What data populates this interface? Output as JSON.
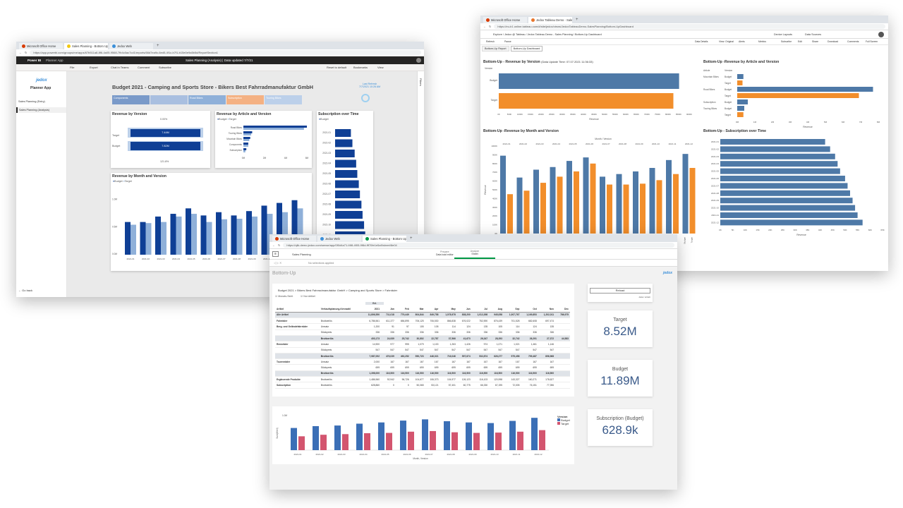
{
  "pbi": {
    "tabs": [
      "Microsoft Office Home",
      "Sales Planning - Bottom Up",
      "Jedox Web"
    ],
    "url": "https://app.powerbi.com/groups/me/apps/67b511a8-8f6-4a05-9568-7fb4c0ac7cd1/reports/66d7ea9c-6ed5-4f1c-b7f1-b15e0e9a5b5d/ReportSection1",
    "brand": "Power BI",
    "app": "Planner App",
    "center": "Sales Planning (Analysis)  |  Data updated 7/7/21",
    "toolbar": [
      "File",
      "Export",
      "Chat in Teams",
      "Comment",
      "Subscribe"
    ],
    "right_tools": [
      "Reset to default",
      "Bookmarks",
      "View"
    ],
    "nav_logo": "jedox",
    "nav_title": "Planner App",
    "nav_items": [
      "Sales Planning (Entry)",
      "Sales Planning (Analysis)"
    ],
    "go_back": "Go back",
    "filters": "Filters",
    "report_title": "Budget 2021 - Camping and Sports Store - Bikers Best Fahrradmanufaktur GmbH",
    "status_lines": [
      "Last Refresh",
      "7/7/2021 10:26 AM"
    ],
    "slicers": [
      {
        "label": "Components",
        "color": "#7a9ac9"
      },
      {
        "label": "",
        "color": "#a9bfe0"
      },
      {
        "label": "Road Bikes",
        "color": "#8fb0d9"
      },
      {
        "label": "Subscription",
        "color": "#f4b183"
      },
      {
        "label": "Touring Bikes",
        "color": "#bcd0ea"
      }
    ],
    "rev_version": {
      "title": "Revenue by Version",
      "top": "0.00%",
      "bottom": "121.8%",
      "rows": [
        {
          "label": "Target",
          "value": "7.44M"
        },
        {
          "label": "Budget",
          "value": "7.82M"
        }
      ]
    },
    "rev_article": {
      "title": "Revenue by Article and Version",
      "legend": [
        "Budget",
        "Target"
      ],
      "categories": [
        "Road Bikes",
        "Touring Bikes",
        "Mountain Bikes",
        "Components",
        "Subscription"
      ],
      "ticks": [
        "0M",
        "2M",
        "4M",
        "6M"
      ]
    },
    "subscription": {
      "title": "Subscription over Time",
      "legend": "Budget",
      "months": [
        "2021-01",
        "2021-02",
        "2021-03",
        "2021-04",
        "2021-05",
        "2021-06",
        "2021-07",
        "2021-08",
        "2021-09",
        "2021-10",
        "2021-11",
        "2021-12"
      ],
      "ticks": [
        "0K",
        "10K"
      ]
    },
    "month": {
      "title": "Revenue by Month and Version",
      "legend": [
        "Budget",
        "Target"
      ],
      "yticks": [
        "1.0M",
        "0.5M",
        "0.0M"
      ],
      "months": [
        "2021-01",
        "2021-02",
        "2021-03",
        "2021-04",
        "2021-05",
        "2021-06",
        "2021-07",
        "2021-08",
        "2021-09",
        "2021-10",
        "2021-11",
        "2021-12"
      ]
    }
  },
  "tab": {
    "tabs": [
      "Microsoft Office Home",
      "Jedox Tableau Demo - Sales P"
    ],
    "url": "https://eu-b1.online.tableau.com/#/site/jedox/views/JedoxTableauDemo-SalesPlanning/Bottom-UpDashboard",
    "breadcrumb": "Explore  /  Jedox  @  Tableau  /  Jedox Tableau Demo - Sales Planning  /  Bottom-Up Dashboard",
    "top_right": [
      "Device Layouts",
      "Data Sources"
    ],
    "toolbar": [
      "Refresh",
      "Pause",
      "Data Details",
      "View: Original",
      "Alerts",
      "Metrics",
      "Subscribe",
      "Edit",
      "Share",
      "Download",
      "Comments",
      "Full Screen"
    ],
    "sheet_tabs": [
      "Bottom-Up Report",
      "Bottom-Up Dashboard"
    ],
    "version": {
      "title": "Bottom-Up - Revenue by Version",
      "subtitle": "(Data Update Time: 07.07.2021 11:36:33)",
      "header": "Version",
      "rows": [
        "Budget",
        "Target"
      ],
      "ticks": [
        "0K",
        "500K",
        "1000K",
        "1500K",
        "2000K",
        "2500K",
        "3000K",
        "3500K",
        "4000K",
        "4500K",
        "5000K",
        "5500K",
        "6000K",
        "6500K",
        "7000K",
        "7500K",
        "8000K",
        "8500K",
        "9000K"
      ],
      "axis": "Revenue"
    },
    "article": {
      "title": "Bottom-Up -Revenue by Article and Version",
      "headers": [
        "Article",
        "Version"
      ],
      "rows": [
        [
          "Mountain Bikes",
          "Budget"
        ],
        [
          "",
          "Target"
        ],
        [
          "Road Bikes",
          "Budget"
        ],
        [
          "",
          "Target"
        ],
        [
          "Subscription",
          "Budget"
        ],
        [
          "Touring Bikes",
          "Budget"
        ],
        [
          "",
          "Target"
        ]
      ],
      "ticks": [
        "0M",
        "1M",
        "2M",
        "3M",
        "4M",
        "5M",
        "6M",
        "7M",
        "8M"
      ],
      "axis": "Revenue"
    },
    "month": {
      "title": "Bottom-Up -Revenue by Month and Version",
      "header": "Month / Version",
      "months": [
        "2021-01",
        "2021-02",
        "2021-03",
        "2021-04",
        "2021-05",
        "2021-06",
        "2021-07",
        "2021-08",
        "2021-09",
        "2021-10",
        "2021-11",
        "2021-12"
      ],
      "yticks": [
        "1000K",
        "900K",
        "800K",
        "700K",
        "600K",
        "500K",
        "400K",
        "300K",
        "200K",
        "100K",
        "0K"
      ],
      "yaxis": "Revenue",
      "xlabels": [
        "Budget",
        "Target"
      ]
    },
    "sub": {
      "title": "Bottom-Up - Subscription over Time",
      "months": [
        "2021-01",
        "2021-02",
        "2021-03",
        "2021-04",
        "2021-05",
        "2021-06",
        "2021-07",
        "2021-08",
        "2021-09",
        "2021-10",
        "2021-11",
        "2021-12"
      ],
      "ticks": [
        "0K",
        "5K",
        "10K",
        "15K",
        "20K",
        "25K",
        "30K",
        "35K",
        "40K",
        "45K",
        "50K",
        "55K",
        "60K",
        "65K"
      ],
      "axis": "Revenue"
    }
  },
  "jdx": {
    "tabs": [
      "Microsoft Office Home",
      "Jedox Web",
      "Sales Planning - Bottom Up"
    ],
    "url": "https://qlik.demo.jedox.com/sense/app/0f0d4a71-f4f8-4f05-9f8d-fff70fe1e5a9/sheet/8e04",
    "app": "Sales Planning",
    "sheet_l": [
      "Prepare",
      "Data load editor"
    ],
    "sheet_r": [
      "Analyze",
      "Sheet"
    ],
    "selections": "No selections applied",
    "page": "Bottom-Up",
    "logo": "jedox",
    "table_title": "Budget 2021 > Bikers Best Fahrradmanufaktur GmbH > Camping and Sports Store > Fahrräder",
    "checks": [
      "Monats-Sicht",
      "Nur Artikel"
    ],
    "year": "Bd.",
    "year2": "2021",
    "head": [
      "Artikel",
      "Verkaufsplanung-Kennzahl",
      "2021",
      "Jan",
      "Feb",
      "Mar",
      "Apr",
      "May",
      "Jun",
      "Jul",
      "Aug",
      "Sep",
      "Oct",
      "Nov",
      "Dec"
    ],
    "rows": [
      {
        "c": "sub",
        "a": "Alle Artikel",
        "k": "",
        "v": [
          "11,806,550",
          "711,018",
          "779,449",
          "804,844",
          "849,758",
          "1,078,978",
          "838,200",
          "1,012,398",
          "945,058",
          "1,007,767",
          "1,169,853",
          "1,202,011",
          "786,975"
        ]
      },
      {
        "c": "",
        "a": "Fahrräder",
        "k": "Bruttoerlös",
        "v": [
          "6,786,561",
          "611,377",
          "656,895",
          "706,125",
          "706,530",
          "866,838",
          "676,022",
          "752,590",
          "876,439",
          "701,528",
          "682,608",
          "697,474",
          ""
        ]
      },
      {
        "c": "",
        "a": "Berg- und Geländefahrräder",
        "k": "Umsatz",
        "v": [
          "1,200",
          "91",
          "97",
          "105",
          "105",
          "114",
          "124",
          "135",
          "105",
          "114",
          "124",
          "135",
          ""
        ]
      },
      {
        "c": "",
        "a": "",
        "k": "Stückpreis",
        "v": [
          "336",
          "336",
          "336",
          "336",
          "336",
          "336",
          "336",
          "336",
          "336",
          "336",
          "336",
          "336",
          ""
        ]
      },
      {
        "c": "sub",
        "a": "",
        "k": "Bruttoerlös",
        "v": [
          "403,173",
          "24,939",
          "25,742",
          "30,802",
          "22,787",
          "37,566",
          "41,673",
          "26,347",
          "28,293",
          "32,742",
          "26,291",
          "27,372",
          "44,583"
        ]
      },
      {
        "c": "",
        "a": "Rennräder",
        "k": "Umsatz",
        "v": [
          "14,900",
          "977",
          "995",
          "1,079",
          "1,100",
          "1,263",
          "1,426",
          "974",
          "1,071",
          "1,021",
          "1,461",
          "1,146",
          ""
        ]
      },
      {
        "c": "",
        "a": "",
        "k": "Stückpreis",
        "v": [
          "547",
          "547",
          "547",
          "547",
          "547",
          "547",
          "547",
          "547",
          "547",
          "547",
          "547",
          "547",
          ""
        ]
      },
      {
        "c": "sub",
        "a": "",
        "k": "Bruttoerlös",
        "v": [
          "7,987,092",
          "476,039",
          "492,252",
          "590,723",
          "446,021",
          "716,046",
          "597,674",
          "532,874",
          "626,277",
          "575,458",
          "799,487",
          "896,968",
          ""
        ]
      },
      {
        "c": "",
        "a": "Tourenräder",
        "k": "Umsatz",
        "v": [
          "2,000",
          "167",
          "167",
          "167",
          "167",
          "167",
          "167",
          "167",
          "167",
          "167",
          "167",
          "167",
          ""
        ]
      },
      {
        "c": "",
        "a": "",
        "k": "Stückpreis",
        "v": [
          "699",
          "699",
          "699",
          "699",
          "699",
          "699",
          "699",
          "699",
          "699",
          "699",
          "699",
          "699",
          ""
        ]
      },
      {
        "c": "sub",
        "a": "",
        "k": "Bruttoerlös",
        "v": [
          "1,398,000",
          "116,500",
          "116,500",
          "116,500",
          "116,500",
          "116,500",
          "116,500",
          "116,500",
          "116,500",
          "116,500",
          "116,500",
          "116,500",
          ""
        ]
      },
      {
        "c": "",
        "a": "Ergänzende Produkte",
        "k": "Bruttoerlös",
        "v": [
          "1,486,960",
          "92,942",
          "96,726",
          "104,677",
          "106,373",
          "104,977",
          "126,123",
          "116,103",
          "120,998",
          "143,327",
          "160,271",
          "178,627",
          ""
        ]
      },
      {
        "c": "",
        "a": "Subscription",
        "k": "Bruttoerlös",
        "v": [
          "628,860",
          "0",
          "0",
          "50,065",
          "53,121",
          "57,401",
          "60,775",
          "66,330",
          "67,195",
          "72,005",
          "76,151",
          "77,396",
          ""
        ]
      }
    ],
    "chart": {
      "ytick": "1.0M",
      "yaxis": "Sum(Wert)",
      "xaxis": "Month, Version",
      "legend_title": "Version",
      "legend": [
        "Budget",
        "Target"
      ],
      "months": [
        "2021-01",
        "2021-02",
        "2021-03",
        "2021-04",
        "2021-05",
        "2021-06",
        "2021-07",
        "2021-08",
        "2021-09",
        "2021-10",
        "2021-11",
        "2021-12"
      ]
    },
    "reload": "Reload",
    "reload_sub": "data / writeb",
    "kpis": [
      {
        "label": "Target",
        "value": "8.52M"
      },
      {
        "label": "Budget",
        "value": "11.89M"
      },
      {
        "label": "Subscription (Budget)",
        "value": "628.9k"
      }
    ]
  },
  "colors": {
    "pbi_dark": "#0f3f95",
    "pbi_light": "#8fb0d9",
    "tab_blue": "#4e79a7",
    "tab_orange": "#f28e2b",
    "qlik_blue": "#3b6fb6",
    "qlik_pink": "#d3556f"
  },
  "chart_data": [
    {
      "type": "bar",
      "title": "Revenue by Month and Version",
      "categories": [
        "2021-01",
        "2021-02",
        "2021-03",
        "2021-04",
        "2021-05",
        "2021-06",
        "2021-07",
        "2021-08",
        "2021-09",
        "2021-10",
        "2021-11",
        "2021-12"
      ],
      "ylim": [
        0,
        1.1
      ],
      "ylabel": "",
      "series": [
        {
          "name": "Budget",
          "values": [
            0.6,
            0.6,
            0.7,
            0.75,
            0.85,
            0.72,
            0.78,
            0.72,
            0.8,
            0.9,
            0.95,
            1.0
          ]
        },
        {
          "name": "Target",
          "values": [
            0.55,
            0.58,
            0.6,
            0.7,
            0.75,
            0.6,
            0.65,
            0.66,
            0.7,
            0.75,
            0.78,
            0.85
          ]
        }
      ]
    },
    {
      "type": "bar",
      "title": "Subscription over Time",
      "categories": [
        "2021-01",
        "2021-02",
        "2021-03",
        "2021-04",
        "2021-05",
        "2021-06",
        "2021-07",
        "2021-08",
        "2021-09",
        "2021-10",
        "2021-11",
        "2021-12"
      ],
      "series": [
        {
          "name": "Budget",
          "values": [
            4.2,
            4.6,
            5.2,
            5.6,
            5.9,
            6.3,
            6.6,
            7.0,
            7.3,
            7.7,
            8.0,
            8.4
          ]
        }
      ]
    },
    {
      "type": "bar",
      "title": "Bottom-Up -Revenue by Month and Version",
      "categories": [
        "2021-01",
        "2021-02",
        "2021-03",
        "2021-04",
        "2021-05",
        "2021-06",
        "2021-07",
        "2021-08",
        "2021-09",
        "2021-10",
        "2021-11",
        "2021-12"
      ],
      "ylabel": "Revenue",
      "ylim": [
        0,
        1000
      ],
      "series": [
        {
          "name": "Budget",
          "values": [
            890,
            640,
            730,
            760,
            830,
            870,
            650,
            680,
            710,
            750,
            840,
            910
          ]
        },
        {
          "name": "Target",
          "values": [
            450,
            490,
            580,
            650,
            710,
            800,
            560,
            560,
            570,
            610,
            680,
            750
          ]
        }
      ]
    },
    {
      "type": "bar",
      "title": "Bottom-Up - Subscription over Time",
      "categories": [
        "2021-01",
        "2021-02",
        "2021-03",
        "2021-04",
        "2021-05",
        "2021-06",
        "2021-07",
        "2021-08",
        "2021-09",
        "2021-10",
        "2021-11",
        "2021-12"
      ],
      "xlabel": "Revenue",
      "series": [
        {
          "name": "Budget",
          "values": [
            42,
            44,
            46,
            47,
            48,
            50,
            51,
            52,
            53,
            54,
            55,
            57
          ]
        }
      ]
    },
    {
      "type": "bar",
      "title": "Bottom-Up - Revenue by Version",
      "categories": [
        "Budget",
        "Target"
      ],
      "xlabel": "Revenue",
      "series": [
        {
          "name": "Revenue",
          "values": [
            8520,
            8250
          ]
        }
      ]
    },
    {
      "type": "bar",
      "title": "Bottom-Up",
      "categories": [
        "2021-01",
        "2021-02",
        "2021-03",
        "2021-04",
        "2021-05",
        "2021-06",
        "2021-07",
        "2021-08",
        "2021-09",
        "2021-10",
        "2021-11",
        "2021-12"
      ],
      "ylabel": "Sum(Wert)",
      "xlabel": "Month, Version",
      "series": [
        {
          "name": "Budget",
          "values": [
            0.72,
            0.78,
            0.8,
            0.86,
            0.9,
            0.96,
            1.0,
            0.94,
            0.9,
            0.88,
            0.95,
            1.05
          ]
        },
        {
          "name": "Target",
          "values": [
            0.45,
            0.5,
            0.52,
            0.55,
            0.56,
            0.6,
            0.62,
            0.58,
            0.56,
            0.57,
            0.6,
            0.65
          ]
        }
      ]
    }
  ]
}
